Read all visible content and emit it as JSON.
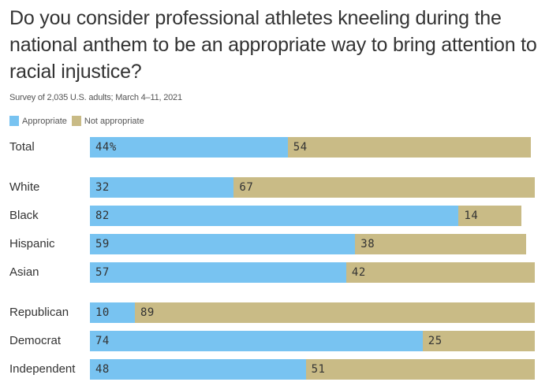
{
  "title": "Do you consider professional athletes kneeling during the national anthem to be an appropriate way to bring attention to racial injustice?",
  "subtitle": "Survey of 2,035 U.S. adults; March 4–11, 2021",
  "colors": {
    "appropriate": "#78c3f1",
    "not_appropriate": "#c9bb86"
  },
  "legend": [
    {
      "label": "Appropriate",
      "color": "#78c3f1"
    },
    {
      "label": "Not appropriate",
      "color": "#c9bb86"
    }
  ],
  "chart_data": {
    "type": "bar",
    "orientation": "horizontal",
    "stacked": true,
    "title": "Do you consider professional athletes kneeling during the national anthem to be an appropriate way to bring attention to racial injustice?",
    "subtitle": "Survey of 2,035 U.S. adults; March 4–11, 2021",
    "xlabel": "",
    "ylabel": "",
    "xlim": [
      0,
      100
    ],
    "grid": false,
    "legend_position": "top-left",
    "categories": [
      "Total",
      "White",
      "Black",
      "Hispanic",
      "Asian",
      "Republican",
      "Democrat",
      "Independent"
    ],
    "groups": [
      [
        "Total"
      ],
      [
        "White",
        "Black",
        "Hispanic",
        "Asian"
      ],
      [
        "Republican",
        "Democrat",
        "Independent"
      ]
    ],
    "series": [
      {
        "name": "Appropriate",
        "values": [
          44,
          32,
          82,
          59,
          57,
          10,
          74,
          48
        ]
      },
      {
        "name": "Not appropriate",
        "values": [
          54,
          67,
          14,
          38,
          42,
          89,
          25,
          51
        ]
      }
    ],
    "data_labels": {
      "Appropriate": [
        "44%",
        "32",
        "82",
        "59",
        "57",
        "10",
        "74",
        "48"
      ],
      "Not appropriate": [
        "54",
        "67",
        "14",
        "38",
        "42",
        "89",
        "25",
        "51"
      ]
    }
  }
}
